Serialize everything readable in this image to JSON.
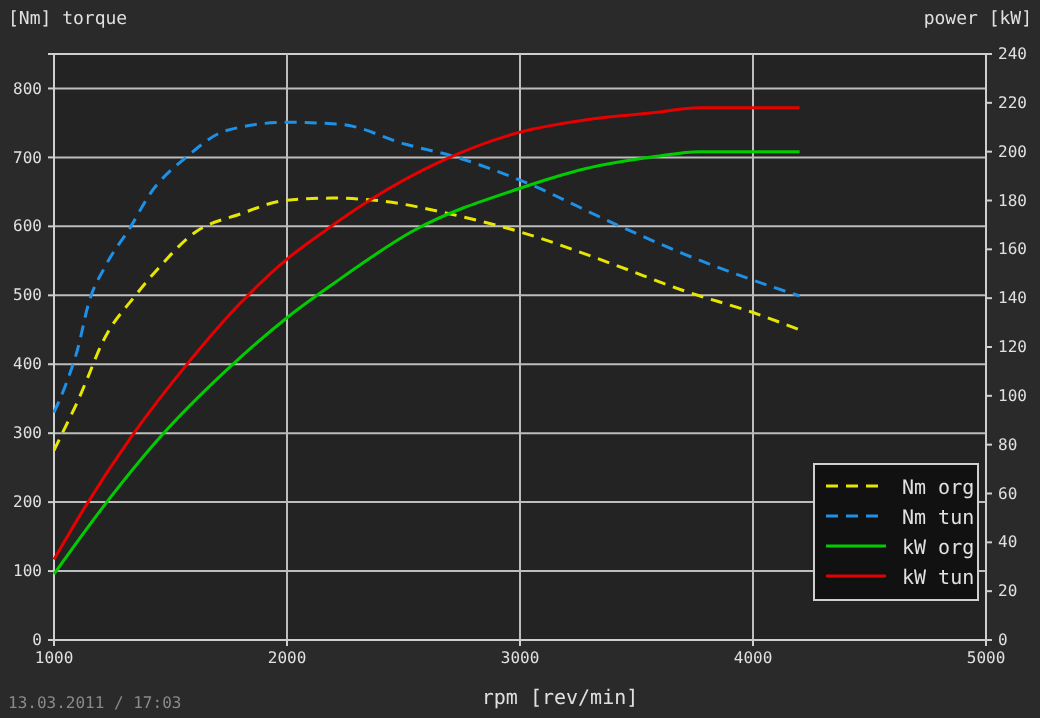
{
  "chart_data": {
    "type": "line",
    "xlabel": "rpm [rev/min]",
    "ylabel": "[Nm] torque",
    "y2label": "power [kW]",
    "annotations": [
      "13.03.2011 / 17:03"
    ],
    "xlim": [
      1000,
      5000
    ],
    "xticks": [
      1000,
      2000,
      3000,
      4000,
      5000
    ],
    "ylim": [
      0,
      850
    ],
    "yticks": [
      0,
      100,
      200,
      300,
      400,
      500,
      600,
      700,
      800
    ],
    "y2lim": [
      0,
      240
    ],
    "y2ticks": [
      0,
      20,
      40,
      60,
      80,
      100,
      120,
      140,
      160,
      180,
      200,
      220,
      240
    ],
    "grid": true,
    "legend": "bottom right",
    "series": [
      {
        "name": "Nm org",
        "color": "#e6e600",
        "line_style": "dashed",
        "x": [
          1000,
          1050,
          1100,
          1150,
          1200,
          1350,
          1450,
          1600,
          1800,
          2000,
          2200,
          2400,
          2700,
          3000,
          3400,
          3700,
          4000,
          4200
        ],
        "values": [
          275,
          310,
          345,
          385,
          426,
          500,
          540,
          590,
          618,
          638,
          641,
          637,
          618,
          592,
          545,
          507,
          475,
          450
        ]
      },
      {
        "name": "Nm tun",
        "color": "#1e90e6",
        "line_style": "dashed",
        "x": [
          1000,
          1050,
          1100,
          1150,
          1220,
          1330,
          1410,
          1570,
          1740,
          2000,
          2230,
          2510,
          2720,
          3000,
          3430,
          3710,
          4000,
          4200
        ],
        "values": [
          330,
          370,
          420,
          490,
          542,
          600,
          646,
          701,
          739,
          751,
          748,
          719,
          701,
          667,
          600,
          559,
          522,
          499
        ]
      },
      {
        "name": "kW org",
        "color": "#00cc00",
        "line_style": "solid",
        "axis": "y2",
        "x": [
          1000,
          1215,
          1455,
          1780,
          2000,
          2200,
          2550,
          3000,
          3280,
          3580,
          3770,
          4200
        ],
        "values": [
          27,
          55,
          83,
          114,
          132,
          146,
          168,
          185,
          193,
          198,
          200,
          200
        ]
      },
      {
        "name": "kW tun",
        "color": "#e60000",
        "line_style": "solid",
        "axis": "y2",
        "x": [
          1000,
          1130,
          1330,
          1580,
          1800,
          2000,
          2140,
          2370,
          2660,
          3000,
          3280,
          3580,
          3770,
          4200
        ],
        "values": [
          33,
          54,
          83,
          114,
          138,
          156,
          166,
          181,
          196,
          208,
          213,
          216,
          218,
          218
        ]
      }
    ]
  }
}
